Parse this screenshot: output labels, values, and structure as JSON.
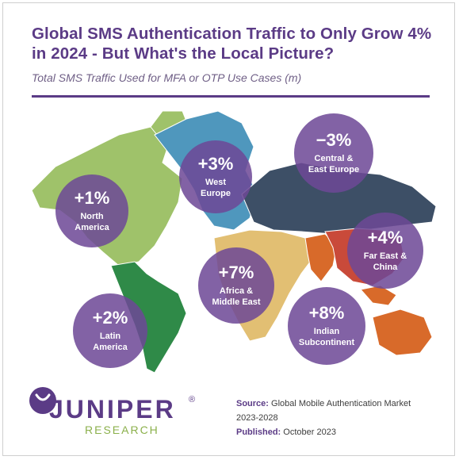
{
  "header": {
    "title": "Global SMS Authentication Traffic to Only Grow 4% in 2024 - But What's the Local Picture?",
    "subtitle": "Total SMS Traffic Used for MFA or OTP Use Cases (m)"
  },
  "chart_data": {
    "type": "map",
    "title": "Global SMS Authentication Traffic to Only Grow 4% in 2024 - But What's the Local Picture?",
    "subtitle": "Total SMS Traffic Used for MFA or OTP Use Cases (m)",
    "regions": [
      {
        "name": "North America",
        "value": 1,
        "label": "+1%",
        "color": "#9fc26a"
      },
      {
        "name": "West Europe",
        "value": 3,
        "label": "+3%",
        "color": "#4f97bd"
      },
      {
        "name": "Central & East Europe",
        "value": -3,
        "label": "−3%",
        "color": "#3d4f66"
      },
      {
        "name": "Far East & China",
        "value": 4,
        "label": "+4%",
        "color": "#c94a3a"
      },
      {
        "name": "Africa & Middle East",
        "value": 7,
        "label": "+7%",
        "color": "#e2bf73"
      },
      {
        "name": "Indian Subcontinent",
        "value": 8,
        "label": "+8%",
        "color": "#d86a2a"
      },
      {
        "name": "Latin America",
        "value": 2,
        "label": "+2%",
        "color": "#2f8a48"
      }
    ]
  },
  "bubbles": [
    {
      "value": "+1%",
      "line1": "North",
      "line2": "America"
    },
    {
      "value": "+3%",
      "line1": "West",
      "line2": "Europe"
    },
    {
      "value": "−3%",
      "line1": "Central &",
      "line2": "East Europe"
    },
    {
      "value": "+4%",
      "line1": "Far East &",
      "line2": "China"
    },
    {
      "value": "+7%",
      "line1": "Africa &",
      "line2": "Middle East"
    },
    {
      "value": "+8%",
      "line1": "Indian",
      "line2": "Subcontinent"
    },
    {
      "value": "+2%",
      "line1": "Latin",
      "line2": "America"
    }
  ],
  "logo": {
    "word": "JUNIPER",
    "reg": "®",
    "sub": "RESEARCH"
  },
  "source": {
    "source_label": "Source:",
    "source_text": "Global Mobile Authentication Market 2023-2028",
    "published_label": "Published:",
    "published_text": "October 2023"
  },
  "colors": {
    "purple": "#5b3b86",
    "bubble": "#6e4896",
    "green_logo": "#8bb04b"
  }
}
